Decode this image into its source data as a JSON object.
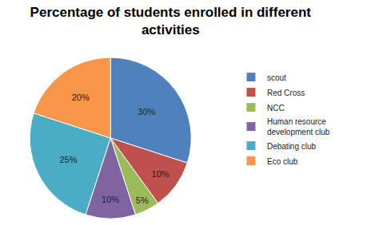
{
  "chart_data": {
    "type": "pie",
    "title": "Percentage of students enrolled in different activities",
    "categories": [
      "scout",
      "Red Cross",
      "NCC",
      "Human resource development club",
      "Debating club",
      "Eco club"
    ],
    "values": [
      30,
      10,
      5,
      10,
      25,
      20
    ],
    "value_labels": [
      "30%",
      "10%",
      "5%",
      "10%",
      "25%",
      "20%"
    ],
    "colors": [
      "#4f81bd",
      "#c0504d",
      "#9bbb59",
      "#8064a2",
      "#4bacc6",
      "#f79646"
    ],
    "data_labels": true,
    "legend": "right"
  }
}
